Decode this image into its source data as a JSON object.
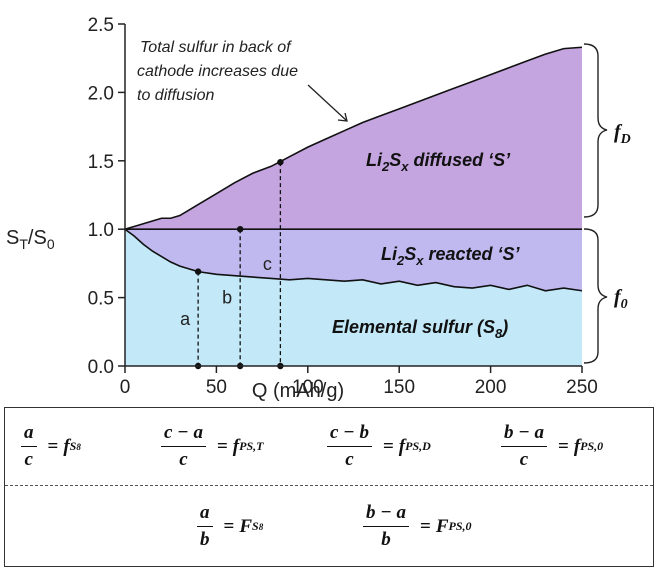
{
  "chart_data": {
    "type": "area",
    "ylabel": "S",
    "ylabel_sub1": "T",
    "ylabel_mid": "/S",
    "ylabel_sub2": "0",
    "xlabel": "Q (mAh/g)",
    "xlim": [
      0,
      250
    ],
    "ylim": [
      0,
      2.5
    ],
    "xticks": [
      "0",
      "50",
      "100",
      "150",
      "200",
      "250"
    ],
    "yticks": [
      "0.0",
      "0.5",
      "1.0",
      "1.5",
      "2.0",
      "2.5"
    ],
    "total_sulfur": {
      "x": [
        0,
        5,
        10,
        15,
        20,
        25,
        30,
        35,
        40,
        50,
        60,
        70,
        80,
        90,
        100,
        110,
        120,
        130,
        140,
        150,
        160,
        170,
        180,
        190,
        200,
        210,
        220,
        230,
        240,
        250
      ],
      "y": [
        1.0,
        1.02,
        1.04,
        1.06,
        1.08,
        1.08,
        1.1,
        1.14,
        1.18,
        1.26,
        1.34,
        1.41,
        1.46,
        1.53,
        1.6,
        1.66,
        1.72,
        1.78,
        1.83,
        1.88,
        1.93,
        1.98,
        2.03,
        2.08,
        2.13,
        2.18,
        2.23,
        2.28,
        2.32,
        2.33
      ]
    },
    "elemental_sulfur": {
      "x": [
        0,
        5,
        10,
        15,
        20,
        25,
        30,
        35,
        40,
        50,
        60,
        70,
        80,
        90,
        100,
        110,
        120,
        130,
        140,
        150,
        160,
        170,
        180,
        190,
        200,
        210,
        220,
        230,
        240,
        250
      ],
      "y": [
        1.0,
        0.95,
        0.89,
        0.84,
        0.8,
        0.76,
        0.73,
        0.71,
        0.69,
        0.67,
        0.66,
        0.65,
        0.64,
        0.63,
        0.64,
        0.63,
        0.62,
        0.63,
        0.6,
        0.62,
        0.59,
        0.61,
        0.58,
        0.57,
        0.59,
        0.56,
        0.59,
        0.55,
        0.57,
        0.55
      ]
    },
    "reference_y": 1.0,
    "markers": [
      {
        "letter": "a",
        "x": 40,
        "y": 0.69
      },
      {
        "letter": "b",
        "x": 63,
        "y": 1.0
      },
      {
        "letter": "c",
        "x": 85,
        "y": 1.49
      }
    ],
    "region_labels": {
      "diffused_pre": "Li",
      "diffused_sub": "2",
      "diffused_mid": "S",
      "diffused_sub2": "x",
      "diffused_post": " diffused ‘S’",
      "reacted_post": " reacted ‘S’",
      "elemental": "Elemental sulfur (S",
      "elemental_sub": "8",
      "elemental_close": ")"
    },
    "annotation": [
      "Total sulfur in back of",
      "cathode increases due",
      "to diffusion"
    ],
    "bracket_labels": {
      "top": "f",
      "top_sub": "D",
      "bottom": "f",
      "bottom_sub": "0"
    },
    "colors": {
      "diffused": "#c4a5e0",
      "reacted": "#c0b9f0",
      "elemental": "#c3e9f8",
      "line": "#111111"
    }
  },
  "formulas": {
    "f1": {
      "num": "a",
      "den": "c",
      "rhs": "f",
      "rhs_sub": "S",
      "rhs_subsub": "8"
    },
    "f2": {
      "num": "c − a",
      "den": "c",
      "rhs": "f",
      "rhs_sub": "PS,T"
    },
    "f3": {
      "num": "c − b",
      "den": "c",
      "rhs": "f",
      "rhs_sub": "PS,D"
    },
    "f4": {
      "num": "b − a",
      "den": "c",
      "rhs": "f",
      "rhs_sub": "PS,0"
    },
    "F1": {
      "num": "a",
      "den": "b",
      "rhs": "F",
      "rhs_sub": "S",
      "rhs_subsub": "8"
    },
    "F2": {
      "num": "b − a",
      "den": "b",
      "rhs": "F",
      "rhs_sub": "PS,0"
    },
    "equals": "="
  }
}
